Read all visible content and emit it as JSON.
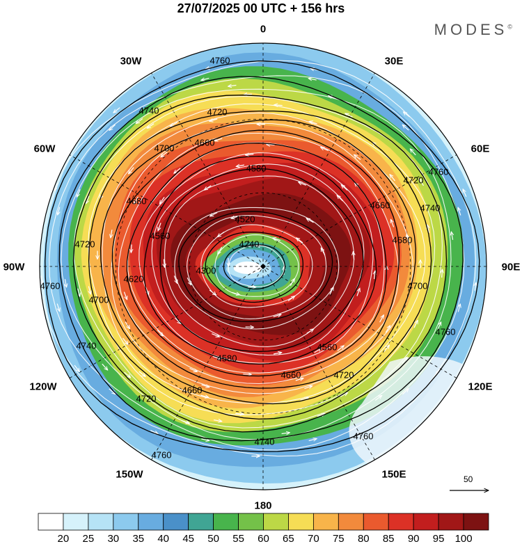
{
  "title": "27/07/2025  00 UTC  + 156 hrs",
  "brand": "MODES",
  "brand_mark": "©",
  "lon_labels": [
    "0",
    "30E",
    "60E",
    "90E",
    "120E",
    "150E",
    "180",
    "150W",
    "120W",
    "90W",
    "60W",
    "30W"
  ],
  "contours": [
    {
      "label": "4760",
      "level": 4760
    },
    {
      "label": "4740",
      "level": 4740
    },
    {
      "label": "4720",
      "level": 4720
    },
    {
      "label": "4700",
      "level": 4700
    },
    {
      "label": "4680",
      "level": 4680
    },
    {
      "label": "4660",
      "level": 4660
    },
    {
      "label": "4620",
      "level": 4620
    },
    {
      "label": "4580",
      "level": 4580
    },
    {
      "label": "4560",
      "level": 4560
    },
    {
      "label": "4520",
      "level": 4520
    },
    {
      "label": "4300",
      "level": 4300
    },
    {
      "label": "4240",
      "level": 4240
    }
  ],
  "colorbar": {
    "ticks": [
      "20",
      "25",
      "30",
      "35",
      "40",
      "45",
      "50",
      "55",
      "60",
      "65",
      "70",
      "75",
      "80",
      "85",
      "90",
      "95",
      "100"
    ],
    "colors": [
      "#ffffff",
      "#d6f2fb",
      "#b6e3f6",
      "#8ccaee",
      "#68ace0",
      "#4a90c9",
      "#40a594",
      "#48b44c",
      "#74c149",
      "#bcd846",
      "#f6dd55",
      "#f8b44a",
      "#f28a3c",
      "#ea5a2e",
      "#dc3126",
      "#c21e1e",
      "#a11717",
      "#7d1212"
    ]
  },
  "wind_scale": {
    "label": "50"
  }
}
